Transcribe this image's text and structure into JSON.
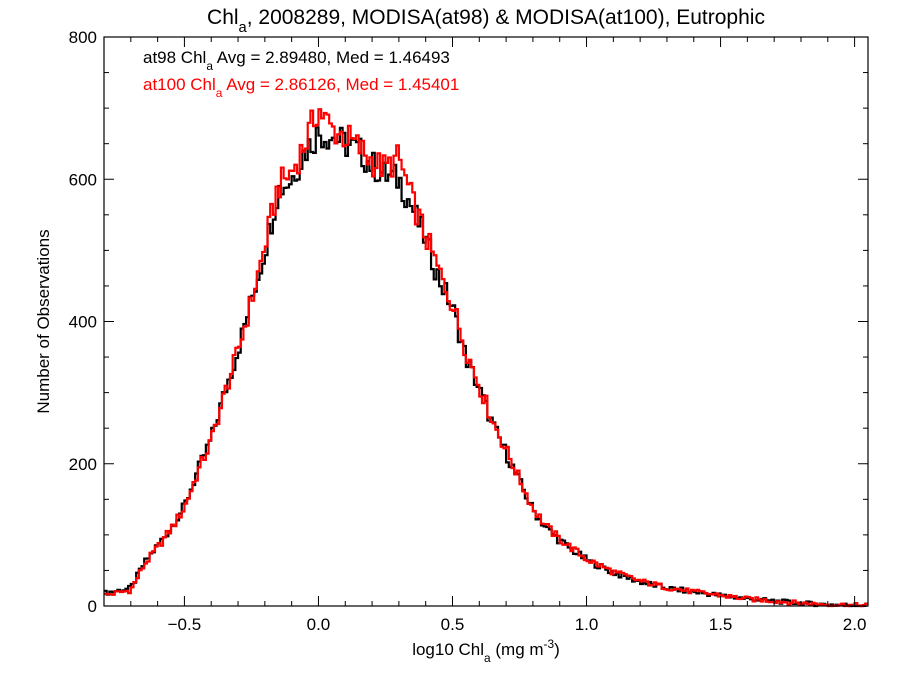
{
  "chart_data": {
    "type": "line",
    "title": {
      "prefix": "Chl",
      "sub": "a",
      "rest": ", 2008289, MODISA(at98) & MODISA(at100), Eutrophic"
    },
    "xlabel": {
      "prefix": "log10 Chl",
      "sub": "a",
      "rest": " (mg m",
      "sup": "-3",
      "close": ")"
    },
    "ylabel": "Number of Observations",
    "xlim": [
      -0.8,
      2.05
    ],
    "ylim": [
      0,
      800
    ],
    "x_ticks": [
      {
        "value": -0.5,
        "label": "−0.5"
      },
      {
        "value": 0.0,
        "label": "0.0"
      },
      {
        "value": 0.5,
        "label": "0.5"
      },
      {
        "value": 1.0,
        "label": "1.0"
      },
      {
        "value": 1.5,
        "label": "1.5"
      },
      {
        "value": 2.0,
        "label": "2.0"
      }
    ],
    "y_ticks": [
      {
        "value": 0,
        "label": "0"
      },
      {
        "value": 200,
        "label": "200"
      },
      {
        "value": 400,
        "label": "400"
      },
      {
        "value": 600,
        "label": "600"
      },
      {
        "value": 800,
        "label": "800"
      }
    ],
    "legend_placement": "top-left",
    "annotations": [
      {
        "prefix": "at98 Chl",
        "sub": "a",
        "text": " Avg = 2.89480, Med = 1.46493",
        "color": "#000000"
      },
      {
        "prefix": "at100 Chl",
        "sub": "a",
        "text": " Avg = 2.86126, Med = 1.45401",
        "color": "#ff0000"
      }
    ],
    "series": [
      {
        "color": "#000000",
        "x": [
          -0.8,
          -0.7,
          -0.65,
          -0.6,
          -0.55,
          -0.5,
          -0.45,
          -0.4,
          -0.35,
          -0.3,
          -0.25,
          -0.2,
          -0.15,
          -0.1,
          -0.05,
          0.0,
          0.05,
          0.1,
          0.15,
          0.2,
          0.25,
          0.3,
          0.35,
          0.4,
          0.45,
          0.5,
          0.55,
          0.6,
          0.65,
          0.7,
          0.75,
          0.8,
          0.85,
          0.9,
          0.95,
          1.0,
          1.1,
          1.2,
          1.3,
          1.4,
          1.5,
          1.6,
          1.7,
          1.8,
          1.9,
          2.0,
          2.05
        ],
        "y": [
          18,
          25,
          60,
          85,
          110,
          140,
          190,
          235,
          300,
          360,
          430,
          500,
          585,
          600,
          640,
          665,
          660,
          650,
          640,
          620,
          605,
          600,
          560,
          515,
          460,
          420,
          350,
          305,
          255,
          215,
          175,
          135,
          110,
          92,
          78,
          65,
          47,
          34,
          25,
          20,
          15,
          10,
          7,
          4,
          2,
          1,
          1
        ]
      },
      {
        "color": "#ff0000",
        "x": [
          -0.8,
          -0.7,
          -0.65,
          -0.6,
          -0.55,
          -0.5,
          -0.45,
          -0.4,
          -0.35,
          -0.3,
          -0.25,
          -0.2,
          -0.15,
          -0.1,
          -0.05,
          0.0,
          0.05,
          0.1,
          0.15,
          0.2,
          0.25,
          0.3,
          0.35,
          0.4,
          0.45,
          0.5,
          0.55,
          0.6,
          0.65,
          0.7,
          0.75,
          0.8,
          0.85,
          0.9,
          0.95,
          1.0,
          1.1,
          1.2,
          1.3,
          1.4,
          1.5,
          1.6,
          1.7,
          1.8,
          1.9,
          2.0,
          2.05
        ],
        "y": [
          15,
          22,
          58,
          82,
          108,
          138,
          188,
          232,
          298,
          358,
          428,
          505,
          590,
          610,
          650,
          700,
          670,
          660,
          645,
          625,
          615,
          630,
          570,
          520,
          470,
          425,
          360,
          310,
          260,
          220,
          178,
          138,
          112,
          94,
          80,
          66,
          48,
          35,
          26,
          20,
          15,
          10,
          7,
          4,
          2,
          1,
          1
        ]
      }
    ]
  }
}
